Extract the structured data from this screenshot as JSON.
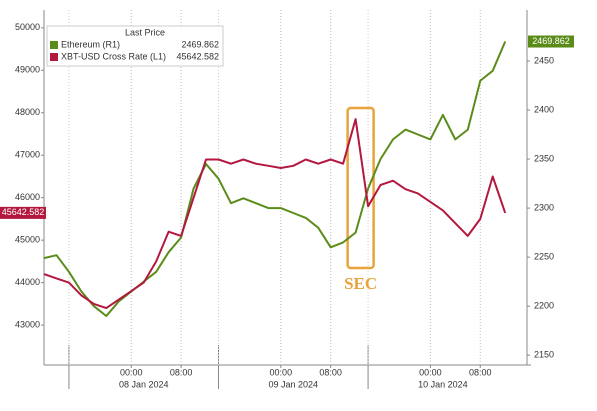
{
  "chart_data": {
    "type": "line",
    "legend_title": "Last Price",
    "legend_position": "upper left",
    "grid": true,
    "x": [
      "2024-01-07 10:00",
      "2024-01-07 12:00",
      "2024-01-07 14:00",
      "2024-01-07 16:00",
      "2024-01-07 18:00",
      "2024-01-07 20:00",
      "2024-01-07 22:00",
      "2024-01-08 00:00",
      "2024-01-08 02:00",
      "2024-01-08 04:00",
      "2024-01-08 06:00",
      "2024-01-08 08:00",
      "2024-01-08 10:00",
      "2024-01-08 12:00",
      "2024-01-08 14:00",
      "2024-01-08 16:00",
      "2024-01-08 18:00",
      "2024-01-08 20:00",
      "2024-01-08 22:00",
      "2024-01-09 00:00",
      "2024-01-09 02:00",
      "2024-01-09 04:00",
      "2024-01-09 06:00",
      "2024-01-09 08:00",
      "2024-01-09 10:00",
      "2024-01-09 12:00",
      "2024-01-09 14:00",
      "2024-01-09 16:00",
      "2024-01-09 18:00",
      "2024-01-09 20:00",
      "2024-01-09 22:00",
      "2024-01-10 00:00",
      "2024-01-10 02:00",
      "2024-01-10 04:00",
      "2024-01-10 06:00",
      "2024-01-10 08:00",
      "2024-01-10 10:00",
      "2024-01-10 12:00"
    ],
    "xlim": [
      "2024-01-07 10:00",
      "2024-01-10 15:30"
    ],
    "xticks": [
      {
        "value": "2024-01-08 00:00",
        "label": "00:00"
      },
      {
        "value": "2024-01-08 08:00",
        "label": "08:00"
      },
      {
        "value": "2024-01-09 00:00",
        "label": "00:00"
      },
      {
        "value": "2024-01-09 08:00",
        "label": "08:00"
      },
      {
        "value": "2024-01-10 00:00",
        "label": "00:00"
      },
      {
        "value": "2024-01-10 08:00",
        "label": "08:00"
      }
    ],
    "x_day_labels": [
      {
        "value": "2024-01-08 02:00",
        "label": "08 Jan 2024"
      },
      {
        "value": "2024-01-09 02:00",
        "label": "09 Jan 2024"
      },
      {
        "value": "2024-01-10 02:00",
        "label": "10 Jan 2024"
      }
    ],
    "ylim": [
      42060,
      50420
    ],
    "yticks": [
      43000,
      44000,
      45000,
      46000,
      47000,
      48000,
      49000,
      50000
    ],
    "y2lim": [
      2140,
      2502
    ],
    "y2ticks": [
      2150,
      2200,
      2250,
      2300,
      2350,
      2400,
      2450
    ],
    "series": [
      {
        "name": "Ethereum (R1)",
        "color": "#5b8c1a",
        "axis": "y2",
        "last": 2469.862,
        "values": [
          2249,
          2252,
          2235,
          2215,
          2200,
          2190,
          2205,
          2215,
          2225,
          2235,
          2255,
          2270,
          2320,
          2345,
          2330,
          2305,
          2310,
          2305,
          2300,
          2300,
          2295,
          2290,
          2280,
          2260,
          2265,
          2275,
          2320,
          2350,
          2370,
          2380,
          2375,
          2370,
          2395,
          2370,
          2380,
          2430,
          2440,
          2469.862
        ]
      },
      {
        "name": "XBT-USD Cross Rate (L1)",
        "color": "#b3183f",
        "axis": "y",
        "last": 45642.582,
        "values": [
          44200,
          44100,
          44000,
          43700,
          43500,
          43400,
          43600,
          43800,
          44000,
          44500,
          45200,
          45100,
          46000,
          46900,
          46900,
          46800,
          46900,
          46800,
          46750,
          46700,
          46750,
          46900,
          46800,
          46900,
          46800,
          47850,
          45800,
          46300,
          46400,
          46200,
          46100,
          45900,
          45700,
          45400,
          45100,
          45500,
          46500,
          45642.582
        ]
      }
    ],
    "annotation": {
      "text": "SEC",
      "x": "2024-01-09 12:00",
      "color": "#e8a33a"
    }
  }
}
